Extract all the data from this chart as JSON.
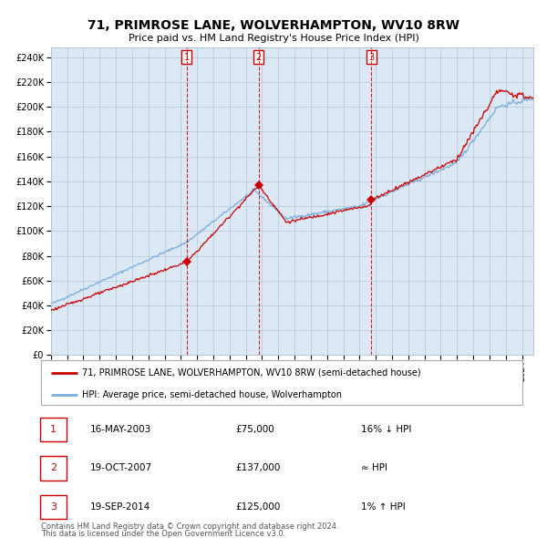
{
  "title": "71, PRIMROSE LANE, WOLVERHAMPTON, WV10 8RW",
  "subtitle": "Price paid vs. HM Land Registry's House Price Index (HPI)",
  "legend_line1": "71, PRIMROSE LANE, WOLVERHAMPTON, WV10 8RW (semi-detached house)",
  "legend_line2": "HPI: Average price, semi-detached house, Wolverhampton",
  "footer1": "Contains HM Land Registry data © Crown copyright and database right 2024.",
  "footer2": "This data is licensed under the Open Government Licence v3.0.",
  "hpi_color": "#7aaddc",
  "price_color": "#cc0000",
  "bg_color": "#dce9f5",
  "grid_color": "#b0c4d8",
  "transactions": [
    {
      "label": "1",
      "date_str": "16-MAY-2003",
      "date_x": 2003.37,
      "price": 75000,
      "note": "16% ↓ HPI"
    },
    {
      "label": "2",
      "date_str": "19-OCT-2007",
      "date_x": 2007.8,
      "price": 137000,
      "note": "≈ HPI"
    },
    {
      "label": "3",
      "date_str": "19-SEP-2014",
      "date_x": 2014.72,
      "price": 125000,
      "note": "1% ↑ HPI"
    }
  ],
  "yticks": [
    0,
    20000,
    40000,
    60000,
    80000,
    100000,
    120000,
    140000,
    160000,
    180000,
    200000,
    220000,
    240000
  ],
  "ylim": [
    0,
    248000
  ],
  "xlim_start": 1995.0,
  "xlim_end": 2024.7
}
